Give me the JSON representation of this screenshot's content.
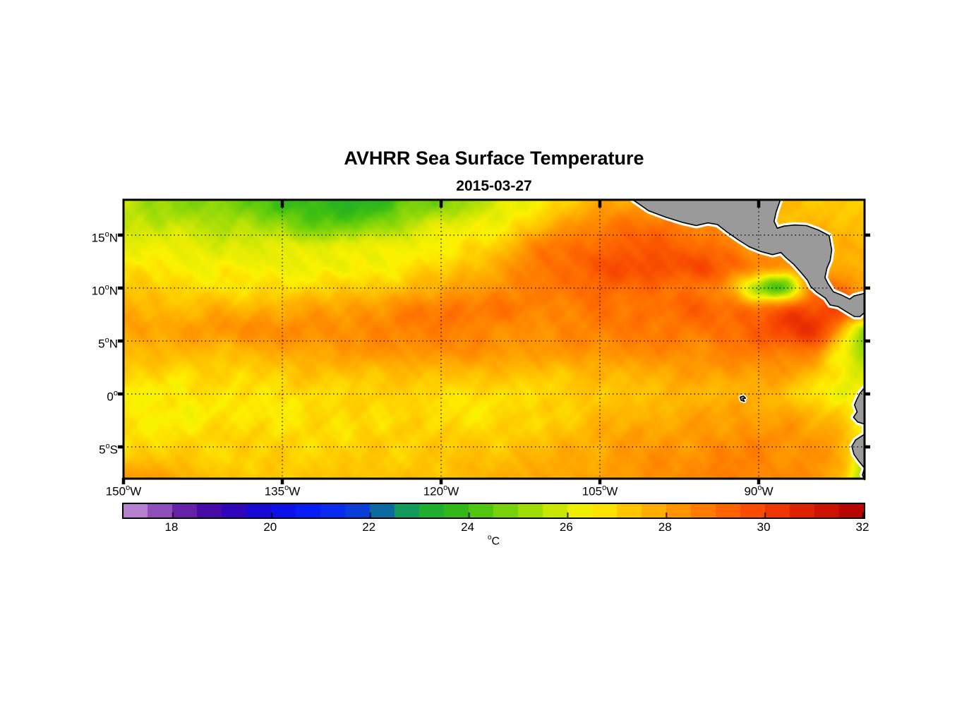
{
  "title": "AVHRR Sea Surface Temperature",
  "subtitle": "2015-03-27",
  "axes": {
    "x_ticks": [
      {
        "value": -150,
        "label": "150",
        "sup": "o",
        "suffix": "W"
      },
      {
        "value": -135,
        "label": "135",
        "sup": "o",
        "suffix": "W"
      },
      {
        "value": -120,
        "label": "120",
        "sup": "o",
        "suffix": "W"
      },
      {
        "value": -105,
        "label": "105",
        "sup": "o",
        "suffix": "W"
      },
      {
        "value": -90,
        "label": "90",
        "sup": "o",
        "suffix": "W"
      }
    ],
    "y_ticks": [
      {
        "value": 15,
        "label": "15",
        "sup": "o",
        "suffix": "N"
      },
      {
        "value": 10,
        "label": "10",
        "sup": "o",
        "suffix": "N"
      },
      {
        "value": 5,
        "label": "5",
        "sup": "o",
        "suffix": "N"
      },
      {
        "value": 0,
        "label": "0",
        "sup": "o",
        "suffix": ""
      },
      {
        "value": -5,
        "label": "5",
        "sup": "o",
        "suffix": "S"
      }
    ],
    "x_gridlines": [
      -135,
      -120,
      -105,
      -90
    ],
    "y_gridlines": [
      15,
      10,
      5,
      0,
      -5
    ],
    "lon_range": [
      -150,
      -80
    ],
    "lat_range": [
      -8,
      18.333
    ]
  },
  "colorbar": {
    "min": 17,
    "max": 32,
    "segments": 30,
    "ticks": [
      18,
      20,
      22,
      24,
      26,
      28,
      30,
      32
    ],
    "unit": {
      "sup": "o",
      "text": "C"
    }
  },
  "colors": {
    "background": "#FFFFFF",
    "land": "#9A9A9A",
    "coast_halo": "#FFFFFF",
    "coastline": "#000000",
    "frame": "#000000",
    "gridline": "#000000"
  },
  "chart_data": {
    "type": "heatmap",
    "title": "AVHRR Sea Surface Temperature",
    "subtitle": "2015-03-27",
    "units": "degrees Celsius",
    "value_range": [
      17,
      32
    ],
    "lons": [
      -150,
      -147.5,
      -145,
      -142.5,
      -140,
      -137.5,
      -135,
      -132.5,
      -130,
      -127.5,
      -125,
      -122.5,
      -120,
      -117.5,
      -115,
      -112.5,
      -110,
      -107.5,
      -105,
      -102.5,
      -100,
      -97.5,
      -95,
      -92.5,
      -90,
      -87.5,
      -85,
      -82.5,
      -80
    ],
    "lats": [
      18,
      16,
      14,
      12,
      10,
      8,
      6,
      4,
      2,
      0,
      -2,
      -4,
      -6,
      -8
    ],
    "sst_grid": [
      [
        25.5,
        25.3,
        25.1,
        24.9,
        24.7,
        24.4,
        24.1,
        23.8,
        23.7,
        23.6,
        24.0,
        24.6,
        24.8,
        25.4,
        25.8,
        26.3,
        26.8,
        27.3,
        27.8,
        28.0,
        28.0,
        27.8,
        27.6,
        27.4,
        27.2,
        27.3,
        27.3,
        27.3,
        27.2
      ],
      [
        25.8,
        25.7,
        25.6,
        25.5,
        25.4,
        25.2,
        25.0,
        24.6,
        24.5,
        24.7,
        25.0,
        25.6,
        25.9,
        26.2,
        26.4,
        26.9,
        27.5,
        28.1,
        28.6,
        28.8,
        28.8,
        28.7,
        28.5,
        28.0,
        27.5,
        27.4,
        27.4,
        27.4,
        27.3
      ],
      [
        26.2,
        26.1,
        26.1,
        26.0,
        26.0,
        26.0,
        26.0,
        26.0,
        26.0,
        26.1,
        26.2,
        26.4,
        26.5,
        26.7,
        27.0,
        27.9,
        28.6,
        28.9,
        29.2,
        29.3,
        29.4,
        29.2,
        29.0,
        28.5,
        28.0,
        27.8,
        27.6,
        27.6,
        27.5
      ],
      [
        26.6,
        26.6,
        26.5,
        26.4,
        26.4,
        26.4,
        26.3,
        26.3,
        26.2,
        26.4,
        26.5,
        26.8,
        27.0,
        27.4,
        27.8,
        28.3,
        28.8,
        29.2,
        29.5,
        29.7,
        29.8,
        29.7,
        29.6,
        29.0,
        28.5,
        28.1,
        27.8,
        27.8,
        27.8
      ],
      [
        27.2,
        27.1,
        27.0,
        26.9,
        26.8,
        26.8,
        26.8,
        26.9,
        27.0,
        27.2,
        27.3,
        27.6,
        27.8,
        28.0,
        28.2,
        28.5,
        28.8,
        29.0,
        29.2,
        29.1,
        29.0,
        28.9,
        28.8,
        27.8,
        25.2,
        24.6,
        28.6,
        28.8,
        28.0
      ],
      [
        27.6,
        27.6,
        27.5,
        27.6,
        27.6,
        27.7,
        27.8,
        27.9,
        28.0,
        28.2,
        28.3,
        28.6,
        28.8,
        28.9,
        28.8,
        28.7,
        28.6,
        28.7,
        28.8,
        28.9,
        29.0,
        29.1,
        29.2,
        29.1,
        29.0,
        29.4,
        29.8,
        29.9,
        29.4
      ],
      [
        28.0,
        28.0,
        28.0,
        28.1,
        28.2,
        28.3,
        28.3,
        28.4,
        28.4,
        28.5,
        28.5,
        28.6,
        28.6,
        28.5,
        28.4,
        28.4,
        28.4,
        28.5,
        28.6,
        28.7,
        28.7,
        28.8,
        28.9,
        29.1,
        29.3,
        29.9,
        30.3,
        28.2,
        25.0
      ],
      [
        27.6,
        27.5,
        27.4,
        27.5,
        27.5,
        27.7,
        27.8,
        27.9,
        28.0,
        28.1,
        28.2,
        28.3,
        28.3,
        28.3,
        28.2,
        28.1,
        28.0,
        28.2,
        28.3,
        28.4,
        28.4,
        28.4,
        28.4,
        28.6,
        28.7,
        28.8,
        28.8,
        26.6,
        25.1
      ],
      [
        27.0,
        27.0,
        26.9,
        27.0,
        27.0,
        27.1,
        27.2,
        27.3,
        27.3,
        27.4,
        27.4,
        27.5,
        27.5,
        27.5,
        27.4,
        27.4,
        27.3,
        27.5,
        27.6,
        27.7,
        27.8,
        27.9,
        28.0,
        28.1,
        28.2,
        28.0,
        27.6,
        26.6,
        25.9
      ],
      [
        26.6,
        26.6,
        26.6,
        26.7,
        26.7,
        26.8,
        26.8,
        26.9,
        26.9,
        27.0,
        27.0,
        27.0,
        26.9,
        26.9,
        26.8,
        26.9,
        26.9,
        27.1,
        27.2,
        27.4,
        27.5,
        27.6,
        27.6,
        27.6,
        27.6,
        27.3,
        26.8,
        26.5,
        26.2
      ],
      [
        26.5,
        26.5,
        26.5,
        26.6,
        26.6,
        26.7,
        26.7,
        26.8,
        26.8,
        26.9,
        26.9,
        26.9,
        26.8,
        26.8,
        26.8,
        26.9,
        27.0,
        27.2,
        27.4,
        27.6,
        27.7,
        27.8,
        27.9,
        28.0,
        28.0,
        27.9,
        27.6,
        27.2,
        26.6
      ],
      [
        26.8,
        26.8,
        26.8,
        26.9,
        26.9,
        26.9,
        26.9,
        26.9,
        26.9,
        27.0,
        27.0,
        27.0,
        27.0,
        27.1,
        27.1,
        27.2,
        27.3,
        27.5,
        27.7,
        27.9,
        28.0,
        28.1,
        28.2,
        28.3,
        28.3,
        28.2,
        28.0,
        27.8,
        26.6
      ],
      [
        27.2,
        27.2,
        27.1,
        27.1,
        27.0,
        27.0,
        27.0,
        27.1,
        27.0,
        27.1,
        27.1,
        27.2,
        27.2,
        27.3,
        27.4,
        27.5,
        27.6,
        27.8,
        27.9,
        28.1,
        28.2,
        28.3,
        28.4,
        28.5,
        28.5,
        28.4,
        28.2,
        27.8,
        25.5
      ],
      [
        28.2,
        28.0,
        27.8,
        27.5,
        27.3,
        27.3,
        27.2,
        27.2,
        27.2,
        27.3,
        27.3,
        27.4,
        27.4,
        27.5,
        27.6,
        27.7,
        27.8,
        27.9,
        28.0,
        28.2,
        28.3,
        28.4,
        28.5,
        28.6,
        28.6,
        28.5,
        28.4,
        27.6,
        25.2
      ]
    ],
    "colormap_stops": [
      [
        17,
        "#C49CDB"
      ],
      [
        17.5,
        "#A66BC8"
      ],
      [
        18,
        "#7B34AC"
      ],
      [
        18.5,
        "#5212A0"
      ],
      [
        19,
        "#3C07A8"
      ],
      [
        19.5,
        "#2306C8"
      ],
      [
        20,
        "#120AE0"
      ],
      [
        20.5,
        "#0916F0"
      ],
      [
        21,
        "#0724F5"
      ],
      [
        21.5,
        "#0832E8"
      ],
      [
        22,
        "#0A46C8"
      ],
      [
        22.5,
        "#108C78"
      ],
      [
        23,
        "#18A83C"
      ],
      [
        23.5,
        "#28B41E"
      ],
      [
        24,
        "#3CBE14"
      ],
      [
        24.5,
        "#64CD0C"
      ],
      [
        25,
        "#8CD70A"
      ],
      [
        25.5,
        "#B4E106"
      ],
      [
        26,
        "#E1EB04"
      ],
      [
        26.5,
        "#FCF200"
      ],
      [
        27,
        "#FFD200"
      ],
      [
        27.5,
        "#FFB900"
      ],
      [
        28,
        "#FFA000"
      ],
      [
        28.5,
        "#FF8700"
      ],
      [
        29,
        "#FF6E00"
      ],
      [
        29.5,
        "#FA5700"
      ],
      [
        30,
        "#F54000"
      ],
      [
        30.5,
        "#E52C00"
      ],
      [
        31,
        "#D51800"
      ],
      [
        31.5,
        "#C10C00"
      ],
      [
        32,
        "#AC0000"
      ]
    ],
    "land_polygons": {
      "central_america": [
        [
          -101.9,
          18.35
        ],
        [
          -100.4,
          17.3
        ],
        [
          -98.8,
          16.7
        ],
        [
          -97.2,
          16.2
        ],
        [
          -95.9,
          15.9
        ],
        [
          -94.8,
          16.15
        ],
        [
          -93.9,
          16.0
        ],
        [
          -93.0,
          15.3
        ],
        [
          -92.0,
          14.6
        ],
        [
          -90.9,
          13.9
        ],
        [
          -89.8,
          13.45
        ],
        [
          -88.7,
          13.15
        ],
        [
          -87.9,
          13.35
        ],
        [
          -87.4,
          12.85
        ],
        [
          -86.7,
          12.25
        ],
        [
          -85.9,
          11.35
        ],
        [
          -85.4,
          10.75
        ],
        [
          -85.1,
          10.15
        ],
        [
          -84.5,
          9.6
        ],
        [
          -83.7,
          9.05
        ],
        [
          -83.25,
          8.4
        ],
        [
          -82.5,
          8.25
        ],
        [
          -81.7,
          7.75
        ],
        [
          -80.95,
          7.3
        ],
        [
          -80.45,
          7.3
        ],
        [
          -80.1,
          7.6
        ],
        [
          -80.0,
          7.75
        ],
        [
          -80.0,
          9.5
        ],
        [
          -81.0,
          9.25
        ],
        [
          -81.4,
          8.95
        ],
        [
          -82.2,
          9.35
        ],
        [
          -82.95,
          9.65
        ],
        [
          -83.45,
          10.4
        ],
        [
          -83.75,
          11.0
        ],
        [
          -83.55,
          11.9
        ],
        [
          -83.25,
          12.6
        ],
        [
          -83.1,
          13.6
        ],
        [
          -83.35,
          14.95
        ],
        [
          -84.4,
          15.5
        ],
        [
          -85.5,
          15.9
        ],
        [
          -86.6,
          15.95
        ],
        [
          -87.6,
          15.85
        ],
        [
          -88.25,
          15.65
        ],
        [
          -88.55,
          16.3
        ],
        [
          -88.35,
          17.2
        ],
        [
          -87.95,
          18.35
        ]
      ],
      "south_america": [
        [
          -80.0,
          0.6
        ],
        [
          -80.45,
          0.05
        ],
        [
          -80.75,
          -0.55
        ],
        [
          -80.95,
          -1.05
        ],
        [
          -80.7,
          -1.7
        ],
        [
          -81.05,
          -2.2
        ],
        [
          -80.65,
          -2.65
        ],
        [
          -80.0,
          -2.85
        ],
        [
          -80.0,
          -3.8
        ],
        [
          -80.85,
          -4.35
        ],
        [
          -81.2,
          -4.95
        ],
        [
          -81.0,
          -5.7
        ],
        [
          -80.55,
          -6.35
        ],
        [
          -80.0,
          -7.0
        ],
        [
          -80.2,
          -7.65
        ],
        [
          -80.0,
          -8.1
        ]
      ],
      "galapagos_islands": [
        [
          -91.75,
          -0.3
        ],
        [
          -91.45,
          -0.2
        ],
        [
          -91.25,
          -0.4
        ],
        [
          -91.5,
          -0.45
        ],
        [
          -91.35,
          -0.7
        ],
        [
          -91.65,
          -0.6
        ]
      ]
    }
  }
}
